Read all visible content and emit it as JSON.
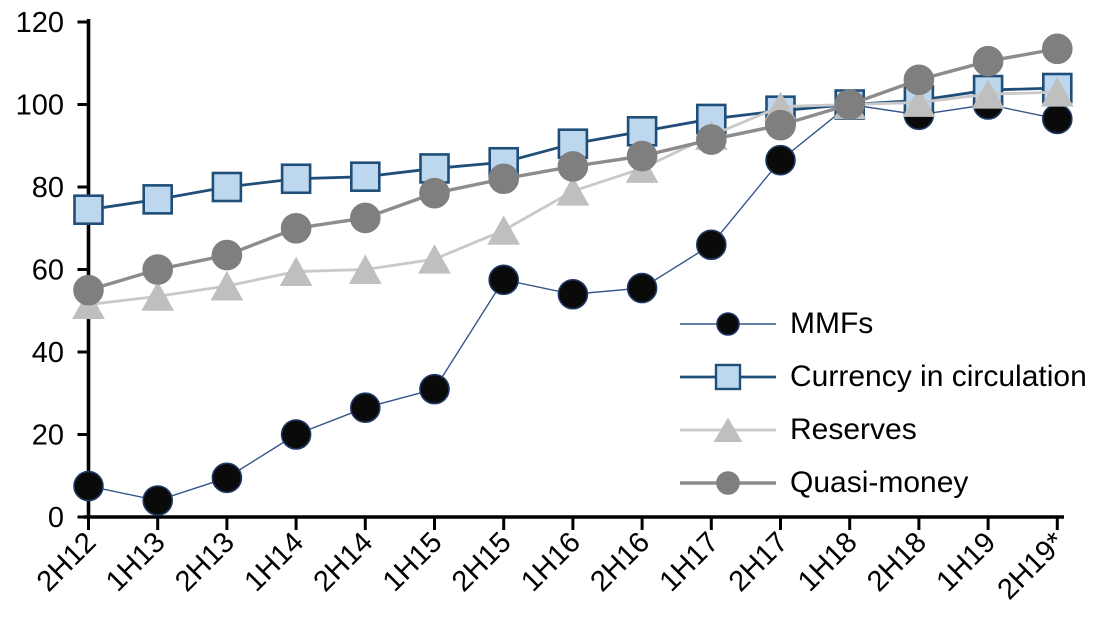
{
  "chart_data": {
    "type": "line",
    "title": "",
    "xlabel": "",
    "ylabel": "",
    "categories": [
      "2H12",
      "1H13",
      "2H13",
      "1H14",
      "2H14",
      "1H15",
      "2H15",
      "1H16",
      "2H16",
      "1H17",
      "2H17",
      "1H18",
      "2H18",
      "1H19",
      "2H19*"
    ],
    "series": [
      {
        "name": "MMFs",
        "marker": "circle",
        "marker_fill": "#0a0a0a",
        "marker_stroke": "#1F3864",
        "line_color": "#35558A",
        "line_width": 1.4,
        "marker_size": 29,
        "values": [
          7.5,
          4,
          9.5,
          20,
          26.5,
          31,
          57.5,
          54,
          55.5,
          66,
          86.5,
          100,
          97.5,
          100,
          96.5
        ]
      },
      {
        "name": "Currency in circulation",
        "marker": "square",
        "marker_fill": "#BDD7EE",
        "marker_stroke": "#1F4E79",
        "line_color": "#1F4E79",
        "line_width": 2.8,
        "marker_size": 28,
        "values": [
          74.5,
          77,
          80,
          82,
          82.5,
          84.5,
          86,
          90.5,
          93.5,
          96.5,
          98.5,
          100,
          101,
          103.5,
          104
        ]
      },
      {
        "name": "Reserves",
        "marker": "triangle",
        "marker_fill": "#BFBFBF",
        "marker_stroke": "#BFBFBF",
        "line_color": "#C9C9C9",
        "line_width": 2.8,
        "marker_size": 31,
        "values": [
          51.5,
          53.5,
          56,
          59.5,
          60,
          62.5,
          69.5,
          79,
          84.5,
          92.5,
          99.5,
          100,
          100.5,
          102.5,
          103
        ]
      },
      {
        "name": "Quasi-money",
        "marker": "circle",
        "marker_fill": "#7F7F7F",
        "marker_stroke": "#7F7F7F",
        "line_color": "#8C8C8C",
        "line_width": 3.4,
        "marker_size": 29,
        "values": [
          55,
          60,
          63.5,
          70,
          72.5,
          78.5,
          82,
          85,
          87.5,
          91.5,
          95,
          100,
          106,
          110.5,
          113.5
        ]
      }
    ],
    "y_axis": {
      "min": 0,
      "max": 120,
      "tick_interval": 20,
      "ticks": [
        "0",
        "20",
        "40",
        "60",
        "80",
        "100",
        "120"
      ]
    },
    "x_axis": {
      "label_rotation": -45
    },
    "legend_position": "inside-right",
    "grid": false,
    "axis_color": "#000000",
    "background_color": "#FFFFFF"
  }
}
